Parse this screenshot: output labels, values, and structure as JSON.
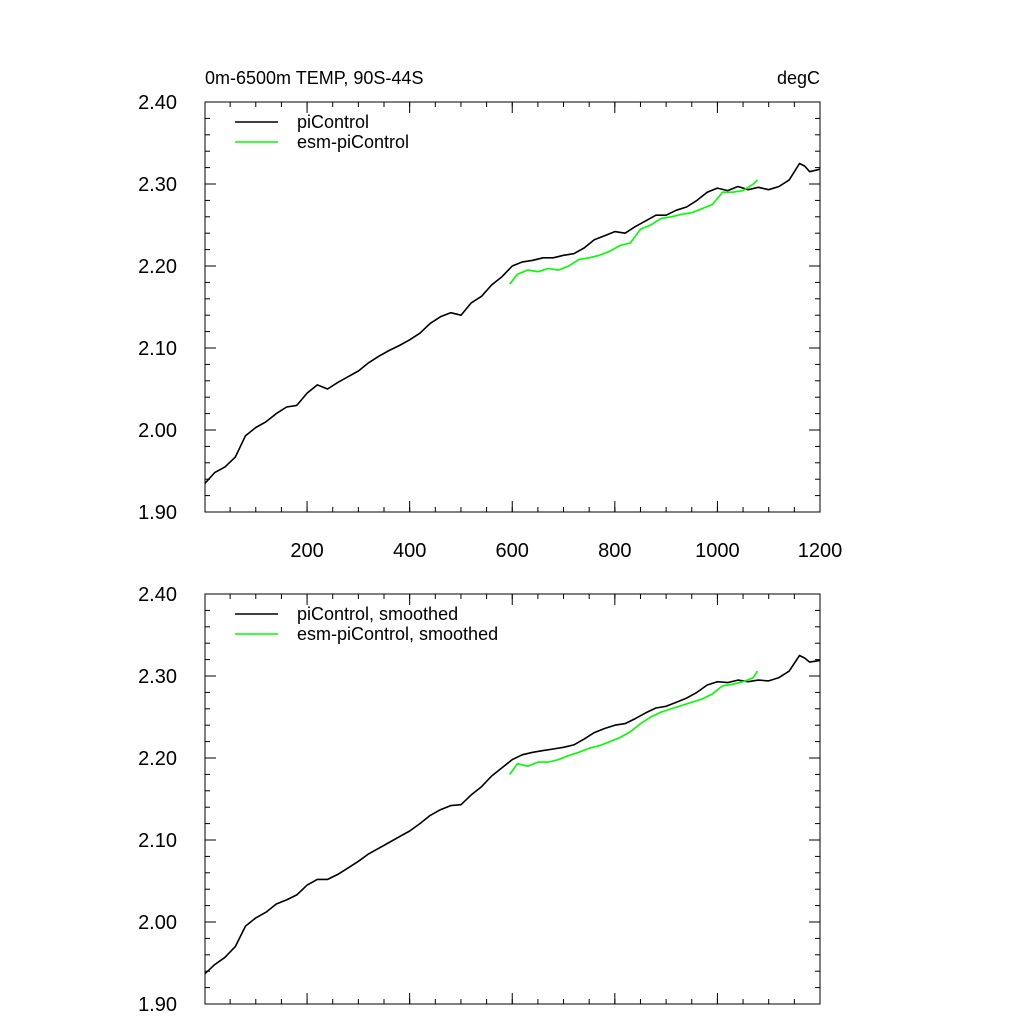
{
  "chart_data": [
    {
      "type": "line",
      "title_left": "0m-6500m TEMP, 90S-44S",
      "title_right": "degC",
      "xlim": [
        1,
        1200
      ],
      "ylim": [
        1.9,
        2.4
      ],
      "xticks": [
        200,
        400,
        600,
        800,
        1000,
        1200
      ],
      "xtick_labels": [
        "200",
        "400",
        "600",
        "800",
        "1000",
        "1200"
      ],
      "yticks": [
        1.9,
        2.0,
        2.1,
        2.2,
        2.3,
        2.4
      ],
      "ytick_labels": [
        "1.90",
        "2.00",
        "2.10",
        "2.20",
        "2.30",
        "2.40"
      ],
      "grid": false,
      "legend_position": "top-left",
      "series": [
        {
          "name": "piControl",
          "color": "#000000",
          "x": [
            1,
            20,
            40,
            60,
            80,
            100,
            120,
            140,
            160,
            180,
            200,
            220,
            240,
            260,
            280,
            300,
            320,
            340,
            360,
            380,
            400,
            420,
            440,
            460,
            480,
            500,
            520,
            540,
            560,
            580,
            600,
            620,
            640,
            660,
            680,
            700,
            720,
            740,
            760,
            780,
            800,
            820,
            840,
            860,
            880,
            900,
            920,
            940,
            960,
            980,
            1000,
            1020,
            1040,
            1060,
            1080,
            1100,
            1120,
            1140,
            1160,
            1170,
            1180,
            1200
          ],
          "y": [
            1.935,
            1.948,
            1.955,
            1.967,
            1.993,
            2.003,
            2.01,
            2.02,
            2.028,
            2.03,
            2.045,
            2.055,
            2.05,
            2.058,
            2.065,
            2.072,
            2.082,
            2.09,
            2.097,
            2.103,
            2.11,
            2.118,
            2.13,
            2.138,
            2.143,
            2.14,
            2.155,
            2.163,
            2.177,
            2.187,
            2.2,
            2.205,
            2.207,
            2.21,
            2.21,
            2.213,
            2.215,
            2.222,
            2.232,
            2.237,
            2.242,
            2.24,
            2.248,
            2.255,
            2.262,
            2.262,
            2.268,
            2.272,
            2.28,
            2.29,
            2.295,
            2.292,
            2.297,
            2.293,
            2.296,
            2.293,
            2.297,
            2.305,
            2.325,
            2.322,
            2.315,
            2.318
          ]
        },
        {
          "name": "esm-piControl",
          "color": "#00ff00",
          "x": [
            595,
            610,
            630,
            650,
            670,
            690,
            710,
            730,
            750,
            770,
            790,
            810,
            830,
            850,
            870,
            890,
            910,
            930,
            950,
            970,
            990,
            1010,
            1030,
            1050,
            1070,
            1078
          ],
          "y": [
            2.178,
            2.19,
            2.195,
            2.193,
            2.197,
            2.195,
            2.2,
            2.208,
            2.21,
            2.213,
            2.218,
            2.225,
            2.228,
            2.245,
            2.25,
            2.258,
            2.26,
            2.263,
            2.265,
            2.27,
            2.275,
            2.29,
            2.29,
            2.292,
            2.3,
            2.305
          ]
        }
      ]
    },
    {
      "type": "line",
      "xlim": [
        1,
        1200
      ],
      "ylim": [
        1.9,
        2.4
      ],
      "xticks": [
        200,
        400,
        600,
        800,
        1000,
        1200
      ],
      "yticks": [
        1.9,
        2.0,
        2.1,
        2.2,
        2.3,
        2.4
      ],
      "ytick_labels": [
        "1.90",
        "2.00",
        "2.10",
        "2.20",
        "2.30",
        "2.40"
      ],
      "grid": false,
      "legend_position": "top-left",
      "series": [
        {
          "name": "piControl, smoothed",
          "color": "#000000",
          "x": [
            1,
            20,
            40,
            60,
            80,
            100,
            120,
            140,
            160,
            180,
            200,
            220,
            240,
            260,
            280,
            300,
            320,
            340,
            360,
            380,
            400,
            420,
            440,
            460,
            480,
            500,
            520,
            540,
            560,
            580,
            600,
            620,
            640,
            660,
            680,
            700,
            720,
            740,
            760,
            780,
            800,
            820,
            840,
            860,
            880,
            900,
            920,
            940,
            960,
            980,
            1000,
            1020,
            1040,
            1060,
            1080,
            1100,
            1120,
            1140,
            1160,
            1170,
            1180,
            1200
          ],
          "y": [
            1.937,
            1.948,
            1.957,
            1.97,
            1.995,
            2.005,
            2.012,
            2.022,
            2.027,
            2.033,
            2.045,
            2.052,
            2.052,
            2.058,
            2.066,
            2.074,
            2.083,
            2.09,
            2.097,
            2.104,
            2.111,
            2.12,
            2.13,
            2.137,
            2.142,
            2.143,
            2.155,
            2.165,
            2.178,
            2.188,
            2.198,
            2.204,
            2.207,
            2.209,
            2.211,
            2.213,
            2.216,
            2.223,
            2.231,
            2.236,
            2.24,
            2.242,
            2.248,
            2.255,
            2.261,
            2.263,
            2.268,
            2.273,
            2.28,
            2.289,
            2.293,
            2.292,
            2.295,
            2.293,
            2.295,
            2.294,
            2.298,
            2.306,
            2.325,
            2.322,
            2.317,
            2.319
          ]
        },
        {
          "name": "esm-piControl, smoothed",
          "color": "#00ff00",
          "x": [
            595,
            610,
            630,
            650,
            670,
            690,
            710,
            730,
            750,
            770,
            790,
            810,
            830,
            850,
            870,
            890,
            910,
            930,
            950,
            970,
            990,
            1010,
            1030,
            1050,
            1070,
            1078
          ],
          "y": [
            2.18,
            2.193,
            2.19,
            2.195,
            2.195,
            2.198,
            2.203,
            2.207,
            2.212,
            2.215,
            2.22,
            2.225,
            2.232,
            2.242,
            2.25,
            2.256,
            2.26,
            2.264,
            2.268,
            2.272,
            2.278,
            2.288,
            2.29,
            2.293,
            2.298,
            2.306
          ]
        }
      ]
    }
  ]
}
